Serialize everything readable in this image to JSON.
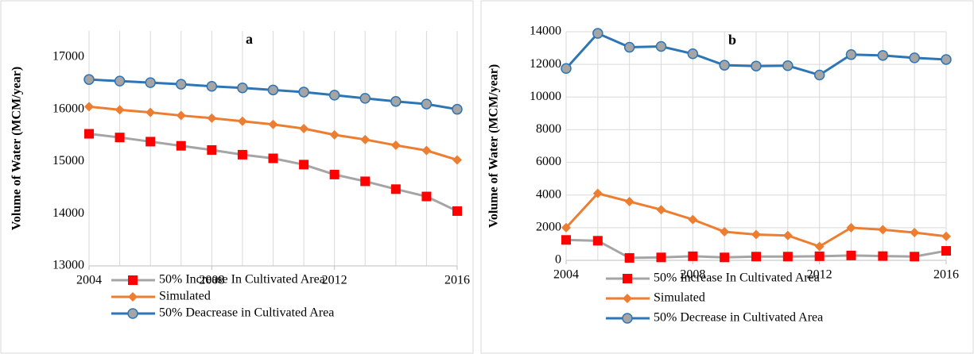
{
  "chart_data": [
    {
      "type": "line",
      "title": "a",
      "y_label": "Volume of Water (MCM/year)",
      "x": [
        2004,
        2005,
        2006,
        2007,
        2008,
        2009,
        2010,
        2011,
        2012,
        2013,
        2014,
        2015,
        2016
      ],
      "xlim": [
        2004,
        2016
      ],
      "xticks": [
        2004,
        2008,
        2012,
        2016
      ],
      "ylim": [
        13000,
        17500
      ],
      "yticks": [
        13000,
        14000,
        15000,
        16000,
        17000
      ],
      "grid": {
        "x": true,
        "y": false
      },
      "series": [
        {
          "name": "50% Increase In Cultivated Area",
          "color": "#a5a5a5",
          "marker": "square",
          "marker_color": "#ff0000",
          "values": [
            15530,
            15460,
            15380,
            15300,
            15220,
            15130,
            15060,
            14940,
            14750,
            14620,
            14470,
            14330,
            14050
          ]
        },
        {
          "name": "Simulated",
          "color": "#ed7d31",
          "marker": "diamond",
          "marker_color": "#ed7d31",
          "values": [
            16050,
            15990,
            15940,
            15880,
            15830,
            15770,
            15710,
            15630,
            15510,
            15420,
            15310,
            15210,
            15030
          ]
        },
        {
          "name": "50% Deacrease in Cultivated Area",
          "color": "#2e75b6",
          "marker": "circle",
          "marker_color": "#a5a5a5",
          "values": [
            16570,
            16540,
            16510,
            16480,
            16440,
            16410,
            16370,
            16330,
            16270,
            16210,
            16150,
            16100,
            16000
          ]
        }
      ]
    },
    {
      "type": "line",
      "title": "b",
      "y_label": "Volume of Water (MCM/year)",
      "x": [
        2004,
        2005,
        2006,
        2007,
        2008,
        2009,
        2010,
        2011,
        2012,
        2013,
        2014,
        2015,
        2016
      ],
      "xlim": [
        2004,
        2016
      ],
      "xticks": [
        2004,
        2008,
        2012,
        2016
      ],
      "ylim": [
        0,
        14000
      ],
      "yticks": [
        0,
        2000,
        4000,
        6000,
        8000,
        10000,
        12000,
        14000
      ],
      "grid": {
        "x": true,
        "y": true
      },
      "series": [
        {
          "name": "50% Increase In Cultivated Area",
          "color": "#a5a5a5",
          "marker": "square",
          "marker_color": "#ff0000",
          "values": [
            1250,
            1200,
            150,
            180,
            250,
            180,
            230,
            230,
            250,
            300,
            260,
            230,
            580
          ]
        },
        {
          "name": "Simulated",
          "color": "#ed7d31",
          "marker": "diamond",
          "marker_color": "#ed7d31",
          "values": [
            2000,
            4100,
            3600,
            3100,
            2500,
            1750,
            1580,
            1520,
            850,
            2000,
            1880,
            1700,
            1470
          ]
        },
        {
          "name": "50% Decrease in Cultivated Area",
          "color": "#2e75b6",
          "marker": "circle",
          "marker_color": "#a5a5a5",
          "values": [
            11750,
            13900,
            13050,
            13100,
            12650,
            11950,
            11900,
            11920,
            11350,
            12600,
            12550,
            12400,
            12300
          ]
        }
      ]
    }
  ]
}
